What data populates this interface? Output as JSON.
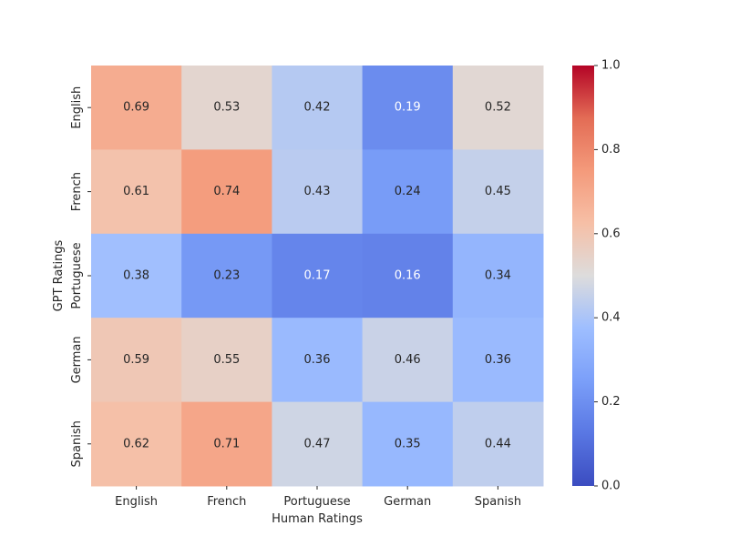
{
  "chart_data": {
    "type": "heatmap",
    "title": "",
    "xlabel": "Human Ratings",
    "ylabel": "GPT Ratings",
    "x_categories": [
      "English",
      "French",
      "Portuguese",
      "German",
      "Spanish"
    ],
    "y_categories": [
      "English",
      "French",
      "Portuguese",
      "German",
      "Spanish"
    ],
    "values": [
      [
        0.69,
        0.53,
        0.42,
        0.19,
        0.52
      ],
      [
        0.61,
        0.74,
        0.43,
        0.24,
        0.45
      ],
      [
        0.38,
        0.23,
        0.17,
        0.16,
        0.34
      ],
      [
        0.59,
        0.55,
        0.36,
        0.46,
        0.36
      ],
      [
        0.62,
        0.71,
        0.47,
        0.35,
        0.44
      ]
    ],
    "colormap": "coolwarm",
    "vmin": 0.0,
    "vmax": 1.0,
    "colorbar_ticks": [
      "0.0",
      "0.2",
      "0.4",
      "0.6",
      "0.8",
      "1.0"
    ],
    "annotations": true,
    "grid": false,
    "legend": "colorbar-right"
  }
}
